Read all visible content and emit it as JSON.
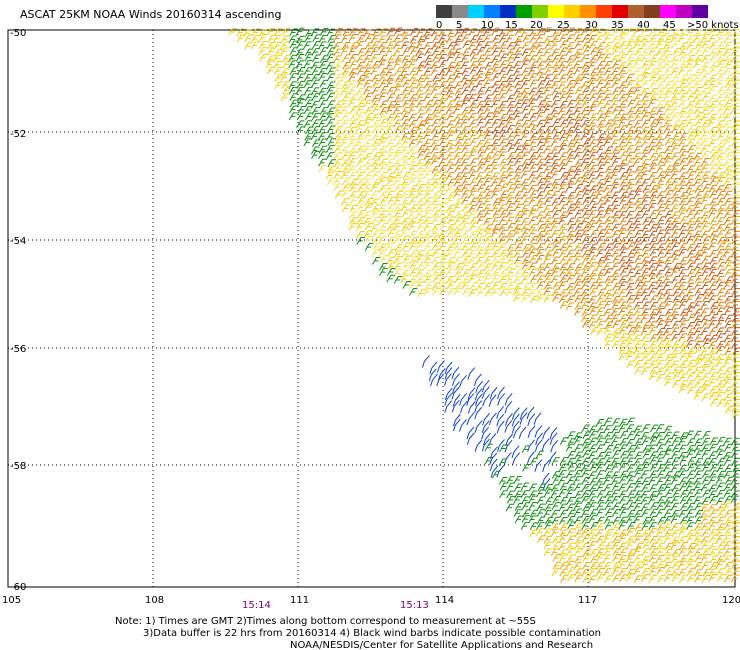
{
  "map": {
    "title": "ASCAT 25KM NOAA Winds 20160314 ascending",
    "lon_range": [
      105,
      120
    ],
    "lat_range": [
      -60,
      -50
    ],
    "lat_ticks": [
      "-50",
      "-52",
      "-54",
      "-56",
      "-58",
      "-60"
    ],
    "lon_ticks": [
      "105",
      "108",
      "111",
      "114",
      "117",
      "120"
    ],
    "time_labels": [
      "15:14",
      "15:13"
    ],
    "time_label_color": "#800080",
    "gridlines": "dotted",
    "legend": {
      "unit": ">50 knots",
      "colors": [
        "#404040",
        "#8a8a8a",
        "#00d0ff",
        "#0080ff",
        "#0030c0",
        "#00a000",
        "#80d000",
        "#ffff00",
        "#ffd000",
        "#ff9000",
        "#ff4000",
        "#e00000",
        "#b06030",
        "#804020",
        "#ff00ff",
        "#c000c0",
        "#6000a0"
      ],
      "labels": [
        "0",
        "5",
        "10",
        "15",
        "20",
        "25",
        "30",
        "35",
        "40",
        "45",
        ">50 knots"
      ]
    },
    "notes": [
      "Note: 1) Times are GMT 2)Times along bottom correspond to measurement at ~55S",
      "3)Data buffer is 22 hrs from 20160314 4) Black wind barbs indicate possible contamination",
      "NOAA/NESDIS/Center for Satellite Applications and Research"
    ],
    "wind_colors": {
      "light": "#f0d000",
      "pale": "#f4e040",
      "orange": "#e08000",
      "dark_orange": "#c85a10",
      "green": "#109010",
      "blue": "#1040d0"
    }
  }
}
